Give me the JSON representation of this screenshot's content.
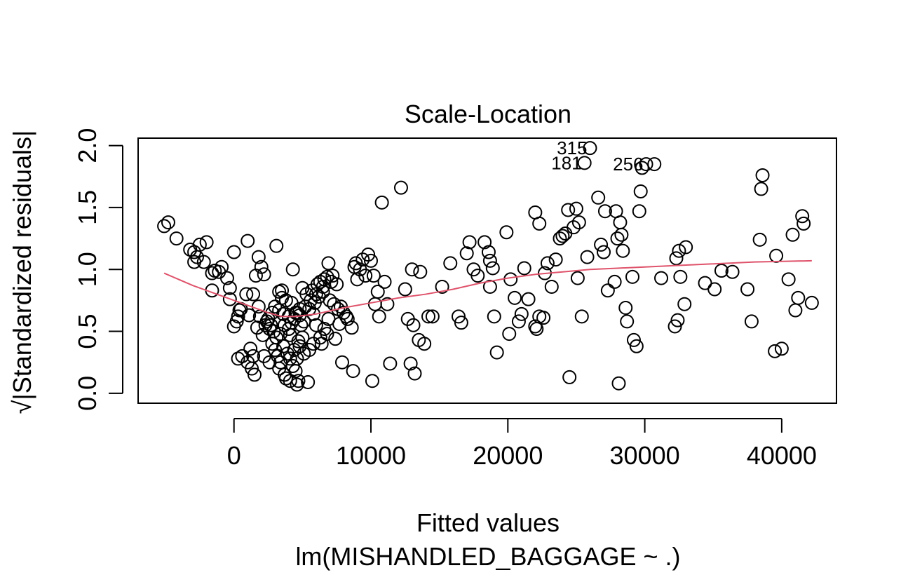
{
  "chart_data": {
    "type": "scatter",
    "title": "Scale-Location",
    "xlabel": "Fitted values",
    "ylabel": "√|Standardized residuals|",
    "subtitle": "lm(MISHANDLED_BAGGAGE ~ .)",
    "xlim": [
      -7000,
      44000
    ],
    "ylim": [
      -0.08,
      2.06
    ],
    "x_ticks": [
      0,
      10000,
      20000,
      30000,
      40000
    ],
    "x_tick_labels": [
      "0",
      "10000",
      "20000",
      "30000",
      "40000"
    ],
    "y_ticks": [
      0.0,
      0.5,
      1.0,
      1.5,
      2.0
    ],
    "y_tick_labels": [
      "0.0",
      "0.5",
      "1.0",
      "1.5",
      "2.0"
    ],
    "grid": false,
    "colors": {
      "points": "#000000",
      "smoother": "#df536b"
    },
    "points": [
      [
        -5100,
        1.35
      ],
      [
        -4800,
        1.38
      ],
      [
        -4200,
        1.25
      ],
      [
        -3200,
        1.16
      ],
      [
        -2900,
        1.14
      ],
      [
        -2700,
        1.1
      ],
      [
        -2500,
        1.2
      ],
      [
        -2000,
        1.22
      ],
      [
        -2900,
        1.06
      ],
      [
        -2200,
        1.06
      ],
      [
        -1600,
        0.97
      ],
      [
        -1400,
        0.99
      ],
      [
        -1100,
        0.98
      ],
      [
        -900,
        1.02
      ],
      [
        -1600,
        0.83
      ],
      [
        -500,
        0.93
      ],
      [
        -300,
        0.85
      ],
      [
        0,
        1.14
      ],
      [
        -300,
        0.76
      ],
      [
        0,
        0.54
      ],
      [
        200,
        0.58
      ],
      [
        300,
        0.62
      ],
      [
        400,
        0.67
      ],
      [
        500,
        0.68
      ],
      [
        900,
        0.8
      ],
      [
        1000,
        1.23
      ],
      [
        1400,
        0.8
      ],
      [
        1800,
        1.1
      ],
      [
        2000,
        1.02
      ],
      [
        2200,
        0.96
      ],
      [
        1600,
        0.95
      ],
      [
        1800,
        0.7
      ],
      [
        1900,
        0.62
      ],
      [
        2400,
        0.58
      ],
      [
        2700,
        0.55
      ],
      [
        2900,
        0.5
      ],
      [
        3100,
        1.19
      ],
      [
        3500,
        0.83
      ],
      [
        3800,
        0.75
      ],
      [
        4200,
        0.73
      ],
      [
        4300,
        1.0
      ],
      [
        4600,
        0.65
      ],
      [
        4900,
        0.55
      ],
      [
        5200,
        0.7
      ],
      [
        5600,
        0.75
      ],
      [
        6000,
        0.8
      ],
      [
        6300,
        0.9
      ],
      [
        6600,
        0.92
      ],
      [
        6900,
        1.05
      ],
      [
        7200,
        0.95
      ],
      [
        7500,
        0.88
      ],
      [
        7800,
        0.7
      ],
      [
        8000,
        0.65
      ],
      [
        8300,
        0.6
      ],
      [
        8600,
        0.53
      ],
      [
        8800,
        1.02
      ],
      [
        8900,
        1.05
      ],
      [
        9200,
        1.0
      ],
      [
        9400,
        1.08
      ],
      [
        9800,
        1.12
      ],
      [
        10000,
        1.07
      ],
      [
        10200,
        0.95
      ],
      [
        10500,
        0.82
      ],
      [
        10800,
        1.54
      ],
      [
        11000,
        0.9
      ],
      [
        11200,
        0.72
      ],
      [
        12200,
        1.66
      ],
      [
        12500,
        0.84
      ],
      [
        13000,
        1.0
      ],
      [
        13600,
        0.98
      ],
      [
        12700,
        0.6
      ],
      [
        13100,
        0.55
      ],
      [
        13500,
        0.43
      ],
      [
        13900,
        0.4
      ],
      [
        14200,
        0.62
      ],
      [
        14500,
        0.62
      ],
      [
        15200,
        0.86
      ],
      [
        15800,
        1.05
      ],
      [
        16400,
        0.62
      ],
      [
        16600,
        0.57
      ],
      [
        17000,
        1.13
      ],
      [
        17200,
        1.22
      ],
      [
        17500,
        1.0
      ],
      [
        17800,
        0.95
      ],
      [
        18300,
        1.22
      ],
      [
        18600,
        1.14
      ],
      [
        18700,
        1.07
      ],
      [
        18900,
        1.01
      ],
      [
        19000,
        0.62
      ],
      [
        19200,
        0.33
      ],
      [
        18700,
        0.86
      ],
      [
        19900,
        1.3
      ],
      [
        20200,
        0.92
      ],
      [
        20500,
        0.77
      ],
      [
        20800,
        0.58
      ],
      [
        21200,
        1.01
      ],
      [
        21500,
        0.76
      ],
      [
        20100,
        0.48
      ],
      [
        21000,
        0.64
      ],
      [
        22000,
        0.54
      ],
      [
        22100,
        0.52
      ],
      [
        22300,
        0.62
      ],
      [
        22600,
        0.61
      ],
      [
        22900,
        1.05
      ],
      [
        23200,
        0.86
      ],
      [
        23500,
        1.08
      ],
      [
        22000,
        1.46
      ],
      [
        22300,
        1.37
      ],
      [
        22700,
        0.97
      ],
      [
        23800,
        1.25
      ],
      [
        24000,
        1.27
      ],
      [
        24200,
        1.29
      ],
      [
        24400,
        1.48
      ],
      [
        24800,
        1.34
      ],
      [
        25000,
        1.49
      ],
      [
        25200,
        1.38
      ],
      [
        25400,
        0.62
      ],
      [
        25800,
        1.1
      ],
      [
        24500,
        0.13
      ],
      [
        25100,
        0.93
      ],
      [
        25600,
        1.86
      ],
      [
        26000,
        1.98
      ],
      [
        26600,
        1.58
      ],
      [
        26800,
        1.2
      ],
      [
        27000,
        1.14
      ],
      [
        27100,
        1.47
      ],
      [
        27300,
        0.83
      ],
      [
        27800,
        0.9
      ],
      [
        27900,
        1.47
      ],
      [
        28200,
        1.38
      ],
      [
        28300,
        1.28
      ],
      [
        28400,
        1.15
      ],
      [
        28600,
        0.69
      ],
      [
        28700,
        0.58
      ],
      [
        28100,
        0.08
      ],
      [
        28000,
        1.25
      ],
      [
        29100,
        0.94
      ],
      [
        29200,
        0.43
      ],
      [
        29400,
        0.38
      ],
      [
        29600,
        1.47
      ],
      [
        29700,
        1.63
      ],
      [
        29800,
        1.82
      ],
      [
        30100,
        1.85
      ],
      [
        30700,
        1.85
      ],
      [
        31200,
        0.93
      ],
      [
        32200,
        0.54
      ],
      [
        32300,
        1.09
      ],
      [
        32500,
        1.15
      ],
      [
        32400,
        0.59
      ],
      [
        32600,
        0.94
      ],
      [
        32900,
        0.72
      ],
      [
        33000,
        1.18
      ],
      [
        34400,
        0.89
      ],
      [
        35100,
        0.84
      ],
      [
        35600,
        0.99
      ],
      [
        36400,
        0.98
      ],
      [
        37500,
        0.84
      ],
      [
        37800,
        0.58
      ],
      [
        38400,
        1.24
      ],
      [
        38500,
        1.65
      ],
      [
        38600,
        1.76
      ],
      [
        39500,
        0.34
      ],
      [
        39600,
        1.11
      ],
      [
        40000,
        0.36
      ],
      [
        40500,
        0.92
      ],
      [
        40800,
        1.28
      ],
      [
        41000,
        0.67
      ],
      [
        41200,
        0.77
      ],
      [
        41500,
        1.43
      ],
      [
        41600,
        1.37
      ],
      [
        42200,
        0.73
      ],
      [
        1200,
        0.36
      ],
      [
        1400,
        0.3
      ],
      [
        1300,
        0.2
      ],
      [
        1500,
        0.15
      ],
      [
        1000,
        0.25
      ],
      [
        600,
        0.3
      ],
      [
        2200,
        0.3
      ],
      [
        2600,
        0.25
      ],
      [
        3000,
        0.35
      ],
      [
        3200,
        0.3
      ],
      [
        3400,
        0.25
      ],
      [
        3600,
        0.38
      ],
      [
        3900,
        0.32
      ],
      [
        4100,
        0.28
      ],
      [
        4300,
        0.22
      ],
      [
        4500,
        0.18
      ],
      [
        4700,
        0.1
      ],
      [
        3800,
        0.12
      ],
      [
        4600,
        0.07
      ],
      [
        5400,
        0.09
      ],
      [
        5100,
        0.32
      ],
      [
        5800,
        0.4
      ],
      [
        6300,
        0.45
      ],
      [
        6800,
        0.48
      ],
      [
        7400,
        0.44
      ],
      [
        7900,
        0.25
      ],
      [
        8700,
        0.18
      ],
      [
        10100,
        0.1
      ],
      [
        11400,
        0.24
      ],
      [
        12900,
        0.24
      ],
      [
        13200,
        0.16
      ],
      [
        2600,
        0.52
      ],
      [
        3100,
        0.45
      ],
      [
        3400,
        0.48
      ],
      [
        3700,
        0.55
      ],
      [
        4000,
        0.52
      ],
      [
        4200,
        0.57
      ],
      [
        4400,
        0.6
      ],
      [
        4800,
        0.63
      ],
      [
        5100,
        0.58
      ],
      [
        5500,
        0.68
      ],
      [
        5900,
        0.73
      ],
      [
        6200,
        0.78
      ],
      [
        6500,
        0.82
      ],
      [
        7000,
        0.75
      ],
      [
        7300,
        0.72
      ],
      [
        2800,
        0.65
      ],
      [
        3000,
        0.7
      ],
      [
        3300,
        0.67
      ],
      [
        3600,
        0.64
      ],
      [
        4000,
        0.62
      ],
      [
        4500,
        0.65
      ],
      [
        4800,
        0.68
      ],
      [
        5300,
        0.8
      ],
      [
        5700,
        0.83
      ],
      [
        6100,
        0.88
      ],
      [
        6500,
        0.86
      ],
      [
        6800,
        0.94
      ],
      [
        7100,
        0.9
      ],
      [
        1100,
        0.63
      ],
      [
        2300,
        0.55
      ],
      [
        2800,
        0.4
      ],
      [
        3300,
        0.2
      ],
      [
        3700,
        0.15
      ],
      [
        4100,
        0.1
      ],
      [
        4400,
        0.35
      ],
      [
        4700,
        0.42
      ],
      [
        5000,
        0.45
      ],
      [
        6000,
        0.55
      ],
      [
        6600,
        0.52
      ],
      [
        7700,
        0.56
      ],
      [
        9600,
        0.95
      ],
      [
        10300,
        0.72
      ],
      [
        10600,
        0.62
      ],
      [
        9000,
        0.92
      ],
      [
        3300,
        0.82
      ],
      [
        2500,
        0.6
      ],
      [
        4800,
        0.38
      ],
      [
        5500,
        0.35
      ],
      [
        6900,
        0.6
      ],
      [
        7600,
        0.68
      ],
      [
        8200,
        0.62
      ],
      [
        300,
        0.28
      ],
      [
        1700,
        0.53
      ],
      [
        2100,
        0.47
      ],
      [
        5000,
        0.85
      ],
      [
        4100,
        0.47
      ],
      [
        5800,
        0.64
      ],
      [
        6400,
        0.4
      ],
      [
        3500,
        0.77
      ],
      [
        4600,
        0.28
      ]
    ],
    "point_labels": [
      {
        "text": "315",
        "x": 26000,
        "y": 1.98
      },
      {
        "text": "181",
        "x": 25600,
        "y": 1.86
      },
      {
        "text": "256",
        "x": 30100,
        "y": 1.85
      }
    ],
    "smoother": [
      [
        -5100,
        0.97
      ],
      [
        -3000,
        0.87
      ],
      [
        -1000,
        0.79
      ],
      [
        1000,
        0.71
      ],
      [
        2500,
        0.65
      ],
      [
        3500,
        0.62
      ],
      [
        4500,
        0.62
      ],
      [
        6000,
        0.64
      ],
      [
        8000,
        0.69
      ],
      [
        10000,
        0.73
      ],
      [
        12000,
        0.77
      ],
      [
        14000,
        0.8
      ],
      [
        16000,
        0.84
      ],
      [
        18000,
        0.89
      ],
      [
        20000,
        0.93
      ],
      [
        22000,
        0.96
      ],
      [
        24000,
        0.98
      ],
      [
        26000,
        1.0
      ],
      [
        28000,
        1.01
      ],
      [
        30000,
        1.02
      ],
      [
        34000,
        1.04
      ],
      [
        38000,
        1.06
      ],
      [
        42200,
        1.07
      ]
    ]
  }
}
